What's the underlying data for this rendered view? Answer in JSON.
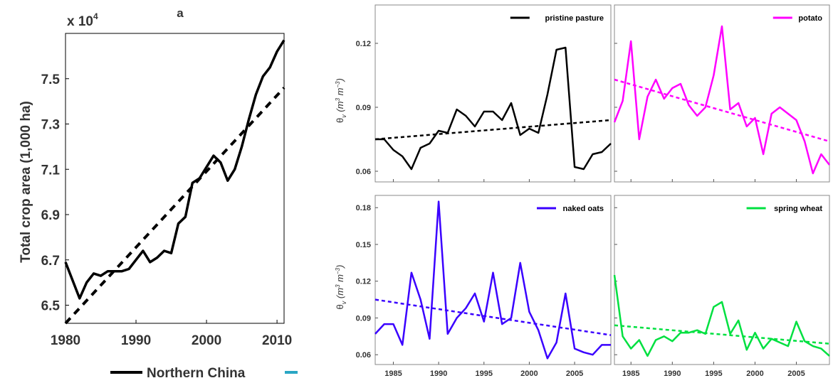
{
  "chart_data": [
    {
      "type": "line",
      "title": "a",
      "ylabel": "Total crop area (1,000 ha)",
      "multiplier": "x 10",
      "multiplier_exp": "4",
      "xlim": [
        1980,
        2011
      ],
      "ylim": [
        6.42,
        7.7
      ],
      "xticks": [
        1980,
        1990,
        2000,
        2010
      ],
      "yticks": [
        6.5,
        6.7,
        6.9,
        7.1,
        7.3,
        7.5
      ],
      "ytick_labels": [
        "6.5",
        "6.7",
        "6.9",
        "7.1",
        "7.3",
        "7.5"
      ],
      "legend": {
        "label": "Northern China",
        "other_color": "#2aa6c4"
      },
      "series": [
        {
          "name": "Northern China",
          "color": "#000000",
          "x": [
            1980,
            1981,
            1982,
            1983,
            1984,
            1985,
            1986,
            1987,
            1988,
            1989,
            1990,
            1991,
            1992,
            1993,
            1994,
            1995,
            1996,
            1997,
            1998,
            1999,
            2000,
            2001,
            2002,
            2003,
            2004,
            2005,
            2006,
            2007,
            2008,
            2009,
            2010,
            2011
          ],
          "y": [
            6.69,
            6.61,
            6.53,
            6.6,
            6.64,
            6.63,
            6.65,
            6.65,
            6.65,
            6.66,
            6.7,
            6.74,
            6.69,
            6.71,
            6.74,
            6.73,
            6.86,
            6.89,
            7.04,
            7.06,
            7.11,
            7.16,
            7.13,
            7.05,
            7.1,
            7.2,
            7.32,
            7.43,
            7.51,
            7.55,
            7.62,
            7.67
          ]
        }
      ],
      "trend": {
        "x": [
          1980,
          2011
        ],
        "y": [
          6.42,
          7.46
        ],
        "color": "#000000"
      }
    },
    {
      "type": "line",
      "legend_label": "pristine pasture",
      "ylabel": "θ v (m3 m−3)",
      "ylabel_parts": {
        "theta": "θ",
        "sub": "v",
        "units": "(m",
        "e1": "3",
        "m": " m",
        "e2": "−3",
        "close": ")"
      },
      "xlim": [
        1983,
        2009
      ],
      "ylim": [
        0.055,
        0.138
      ],
      "yticks": [
        0.06,
        0.09,
        0.12
      ],
      "ytick_labels": [
        "0.06",
        "0.09",
        "0.12"
      ],
      "color": "#000000",
      "series": [
        {
          "name": "pristine pasture",
          "x": [
            1983,
            1984,
            1985,
            1986,
            1987,
            1988,
            1989,
            1990,
            1991,
            1992,
            1993,
            1994,
            1995,
            1996,
            1997,
            1998,
            1999,
            2000,
            2001,
            2002,
            2003,
            2004,
            2005,
            2006,
            2007,
            2008,
            2009
          ],
          "y": [
            0.075,
            0.075,
            0.07,
            0.067,
            0.061,
            0.071,
            0.073,
            0.079,
            0.078,
            0.089,
            0.086,
            0.081,
            0.088,
            0.088,
            0.084,
            0.092,
            0.077,
            0.08,
            0.078,
            0.096,
            0.117,
            0.118,
            0.062,
            0.061,
            0.068,
            0.069,
            0.073
          ]
        }
      ],
      "trend": {
        "x": [
          1983,
          2009
        ],
        "y": [
          0.075,
          0.084
        ]
      }
    },
    {
      "type": "line",
      "legend_label": "potato",
      "xlim": [
        1983,
        2009
      ],
      "ylim": [
        0.055,
        0.138
      ],
      "color": "#ff00ff",
      "series": [
        {
          "name": "potato",
          "x": [
            1983,
            1984,
            1985,
            1986,
            1987,
            1988,
            1989,
            1990,
            1991,
            1992,
            1993,
            1994,
            1995,
            1996,
            1997,
            1998,
            1999,
            2000,
            2001,
            2002,
            2003,
            2004,
            2005,
            2006,
            2007,
            2008,
            2009
          ],
          "y": [
            0.083,
            0.093,
            0.121,
            0.075,
            0.095,
            0.103,
            0.094,
            0.099,
            0.101,
            0.091,
            0.086,
            0.09,
            0.105,
            0.128,
            0.089,
            0.092,
            0.081,
            0.085,
            0.068,
            0.087,
            0.09,
            0.087,
            0.084,
            0.074,
            0.059,
            0.068,
            0.063
          ]
        }
      ],
      "trend": {
        "x": [
          1983,
          2009
        ],
        "y": [
          0.103,
          0.074
        ]
      }
    },
    {
      "type": "line",
      "legend_label": "naked oats",
      "ylabel": "θ v (m3 m−3)",
      "ylabel_parts": {
        "theta": "θ",
        "sub": "v",
        "units": "(m",
        "e1": "3",
        "m": " m",
        "e2": "−3",
        "close": ")"
      },
      "xlim": [
        1983,
        2009
      ],
      "ylim": [
        0.052,
        0.19
      ],
      "xticks": [
        1985,
        1990,
        1995,
        2000,
        2005
      ],
      "yticks": [
        0.06,
        0.09,
        0.12,
        0.15,
        0.18
      ],
      "ytick_labels": [
        "0.06",
        "0.09",
        "0.12",
        "0.15",
        "0.18"
      ],
      "color": "#3a00ff",
      "series": [
        {
          "name": "naked oats",
          "x": [
            1983,
            1984,
            1985,
            1986,
            1987,
            1988,
            1989,
            1990,
            1991,
            1992,
            1993,
            1994,
            1995,
            1996,
            1997,
            1998,
            1999,
            2000,
            2001,
            2002,
            2003,
            2004,
            2005,
            2006,
            2007,
            2008,
            2009
          ],
          "y": [
            0.077,
            0.085,
            0.085,
            0.068,
            0.127,
            0.105,
            0.073,
            0.185,
            0.077,
            0.09,
            0.098,
            0.11,
            0.087,
            0.127,
            0.085,
            0.09,
            0.135,
            0.095,
            0.08,
            0.057,
            0.07,
            0.11,
            0.065,
            0.062,
            0.06,
            0.068,
            0.068
          ]
        }
      ],
      "trend": {
        "x": [
          1983,
          2009
        ],
        "y": [
          0.105,
          0.076
        ]
      }
    },
    {
      "type": "line",
      "legend_label": "spring wheat",
      "xlim": [
        1983,
        2009
      ],
      "ylim": [
        0.052,
        0.19
      ],
      "xticks": [
        1985,
        1990,
        1995,
        2000,
        2005
      ],
      "color": "#00e040",
      "series": [
        {
          "name": "spring wheat",
          "x": [
            1983,
            1984,
            1985,
            1986,
            1987,
            1988,
            1989,
            1990,
            1991,
            1992,
            1993,
            1994,
            1995,
            1996,
            1997,
            1998,
            1999,
            2000,
            2001,
            2002,
            2003,
            2004,
            2005,
            2006,
            2007,
            2008,
            2009
          ],
          "y": [
            0.125,
            0.075,
            0.065,
            0.072,
            0.059,
            0.072,
            0.075,
            0.071,
            0.078,
            0.078,
            0.08,
            0.077,
            0.099,
            0.103,
            0.077,
            0.088,
            0.064,
            0.078,
            0.065,
            0.073,
            0.07,
            0.067,
            0.087,
            0.071,
            0.067,
            0.065,
            0.059
          ]
        }
      ],
      "trend": {
        "x": [
          1983,
          2009
        ],
        "y": [
          0.084,
          0.069
        ]
      }
    }
  ]
}
